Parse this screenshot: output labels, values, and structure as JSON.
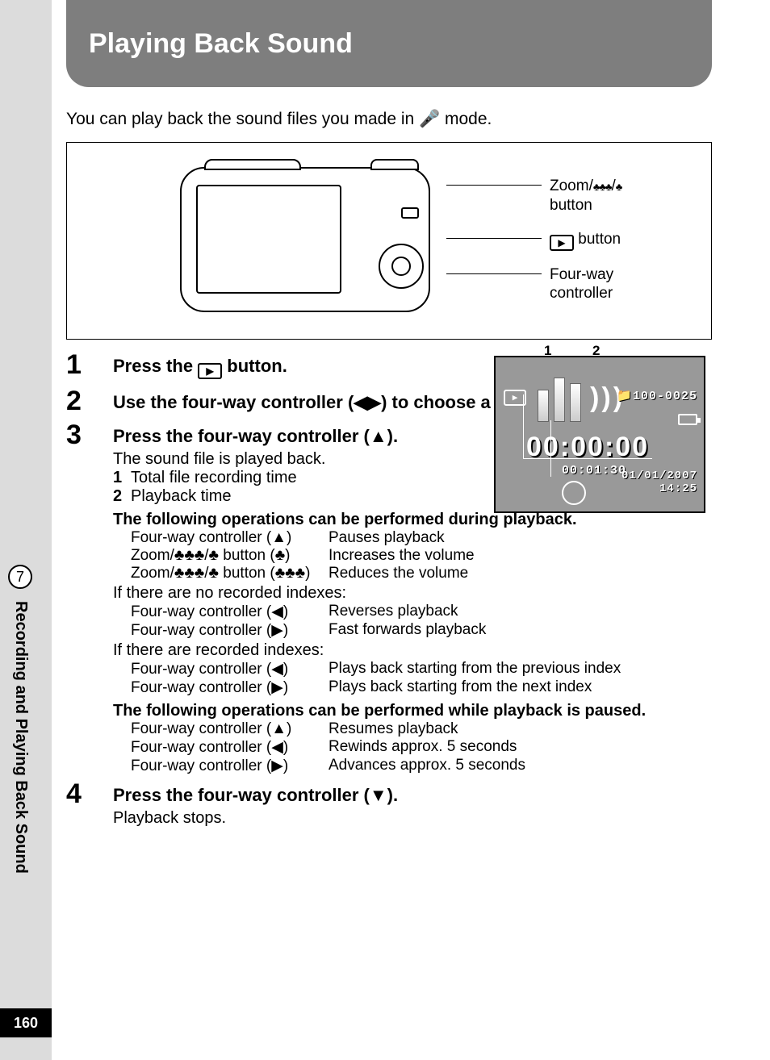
{
  "page": {
    "number": "160",
    "chapter_number": "7",
    "chapter_title": "Recording and Playing Back Sound",
    "title": "Playing Back Sound"
  },
  "intro": "You can play back the sound files you made in 🎤 mode.",
  "diagram_labels": {
    "zoom": "Zoom/♣♣♣/♣ button",
    "play": " button",
    "controller": "Four-way controller"
  },
  "steps": {
    "s1": {
      "num": "1",
      "title_pre": "Press the ",
      "title_post": " button."
    },
    "s2": {
      "num": "2",
      "title": "Use the four-way controller (◀▶) to choose a sound file to play back."
    },
    "s3": {
      "num": "3",
      "title": "Press the four-way controller (▲).",
      "desc": "The sound file is played back.",
      "sub1_n": "1",
      "sub1": "Total file recording time",
      "sub2_n": "2",
      "sub2": "Playback time",
      "ops_title": "The following operations can be performed during playback.",
      "ops": [
        {
          "ctrl": "Four-way controller (▲)",
          "act": "Pauses playback"
        },
        {
          "ctrl": "Zoom/♣♣♣/♣ button (♣)",
          "act": "Increases the volume"
        },
        {
          "ctrl": "Zoom/♣♣♣/♣ button (♣♣♣)",
          "act": "Reduces the volume"
        }
      ],
      "noindex_note": "If there are no recorded indexes:",
      "ops_noindex": [
        {
          "ctrl": "Four-way controller (◀)",
          "act": "Reverses playback"
        },
        {
          "ctrl": "Four-way controller (▶)",
          "act": "Fast forwards playback"
        }
      ],
      "index_note": "If there are recorded indexes:",
      "ops_index": [
        {
          "ctrl": "Four-way controller (◀)",
          "act": "Plays back starting from the previous index"
        },
        {
          "ctrl": "Four-way controller (▶)",
          "act": "Plays back starting from the next index"
        }
      ],
      "pause_title": "The following operations can be performed while playback is paused.",
      "ops_pause": [
        {
          "ctrl": "Four-way controller (▲)",
          "act": "Resumes playback"
        },
        {
          "ctrl": "Four-way controller (◀)",
          "act": "Rewinds approx. 5 seconds"
        },
        {
          "ctrl": "Four-way controller (▶)",
          "act": "Advances approx. 5 seconds"
        }
      ]
    },
    "s4": {
      "num": "4",
      "title": "Press the four-way controller (▼).",
      "desc": "Playback stops."
    }
  },
  "lcd": {
    "tag1": "1",
    "tag2": "2",
    "file_id": "100-0025",
    "timecode": "00:00:00",
    "total": "00:01:30",
    "date": "01/01/2007",
    "time": "14:25"
  }
}
